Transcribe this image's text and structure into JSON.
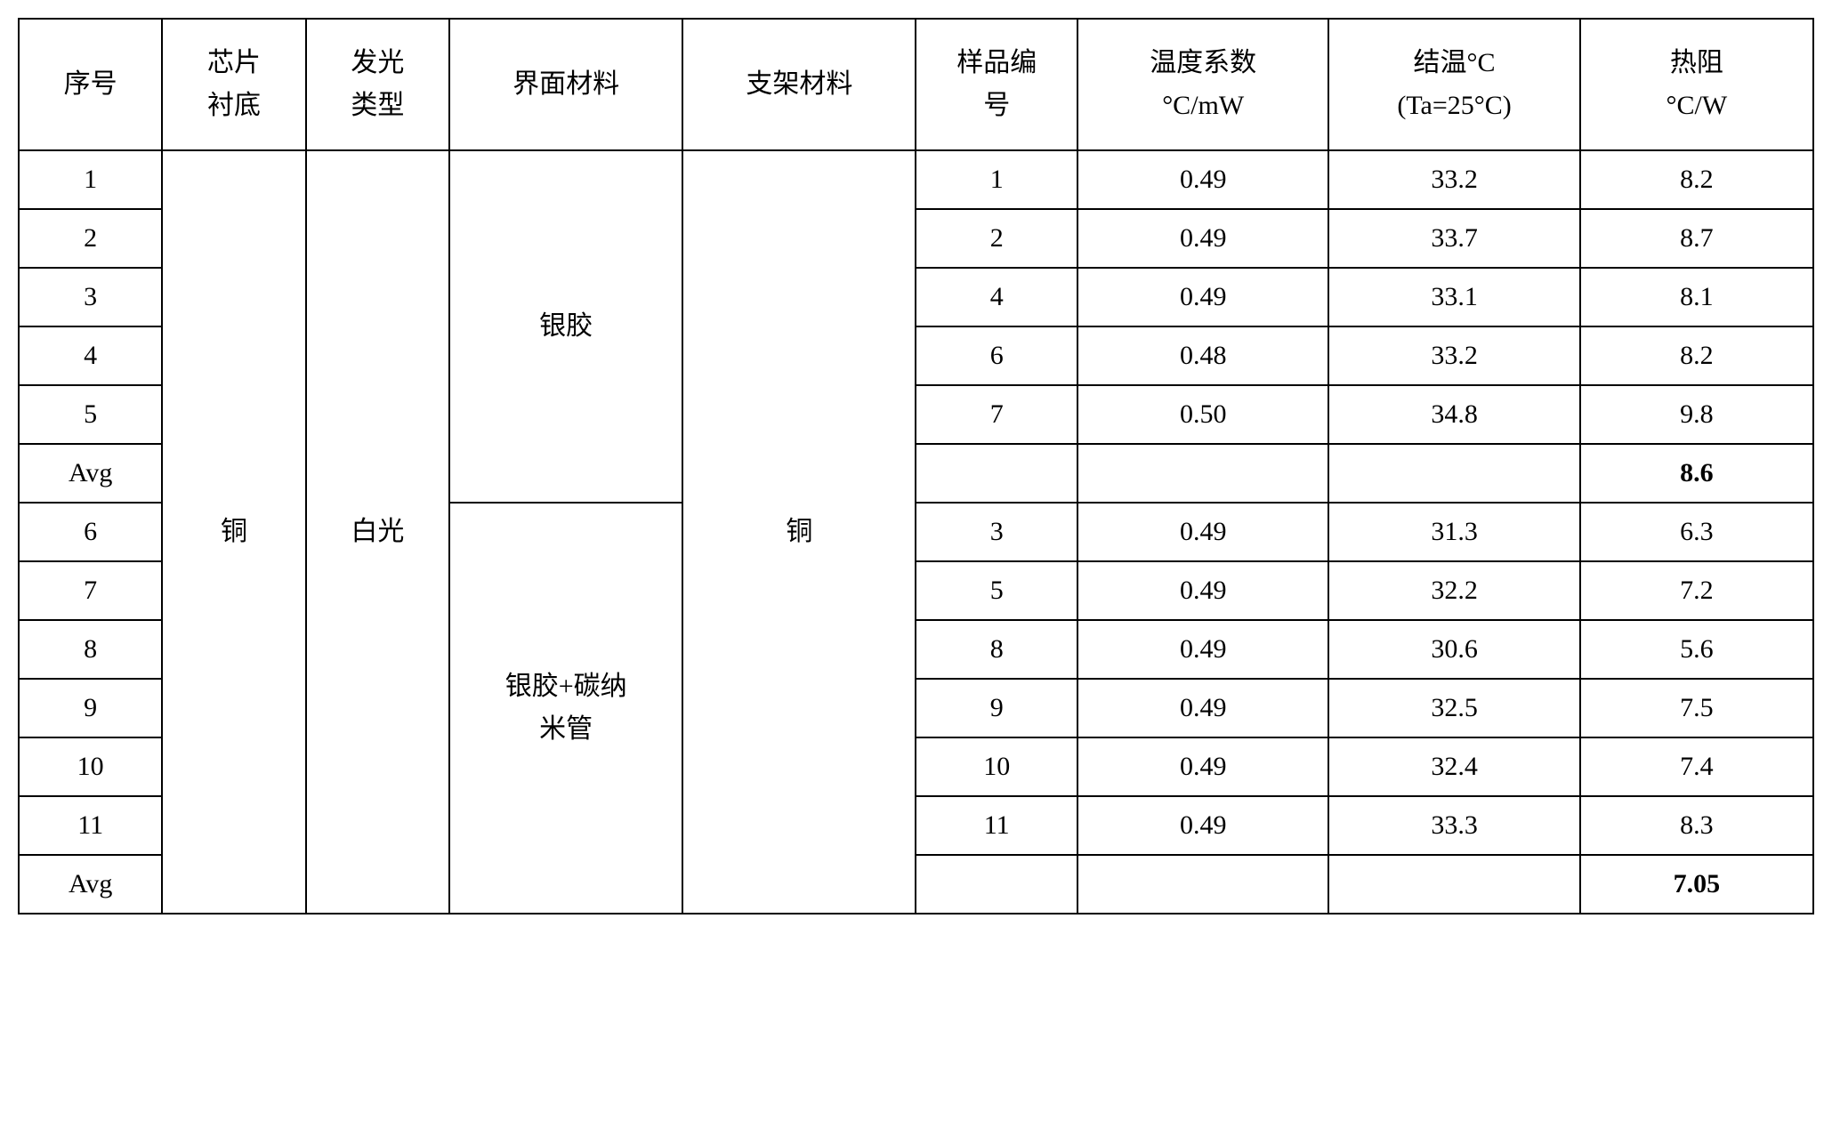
{
  "columns": {
    "c0": "序号",
    "c1": "芯片\n衬底",
    "c2": "发光\n类型",
    "c3": "界面材料",
    "c4": "支架材料",
    "c5": "样品编\n号",
    "c6": "温度系数\n°C/mW",
    "c7": "结温°C\n(Ta=25°C)",
    "c8": "热阻\n°C/W"
  },
  "merged": {
    "substrate": "铜",
    "lighttype": "白光",
    "if1": "银胶",
    "if2": "银胶+碳纳\n米管",
    "bracket": "铜"
  },
  "rows": [
    {
      "idx": "1",
      "sample": "1",
      "coef": "0.49",
      "jt": "33.2",
      "res": "8.2",
      "bold": false
    },
    {
      "idx": "2",
      "sample": "2",
      "coef": "0.49",
      "jt": "33.7",
      "res": "8.7",
      "bold": false
    },
    {
      "idx": "3",
      "sample": "4",
      "coef": "0.49",
      "jt": "33.1",
      "res": "8.1",
      "bold": false
    },
    {
      "idx": "4",
      "sample": "6",
      "coef": "0.48",
      "jt": "33.2",
      "res": "8.2",
      "bold": false
    },
    {
      "idx": "5",
      "sample": "7",
      "coef": "0.50",
      "jt": "34.8",
      "res": "9.8",
      "bold": false
    },
    {
      "idx": "Avg",
      "sample": "",
      "coef": "",
      "jt": "",
      "res": "8.6",
      "bold": true
    },
    {
      "idx": "6",
      "sample": "3",
      "coef": "0.49",
      "jt": "31.3",
      "res": "6.3",
      "bold": false
    },
    {
      "idx": "7",
      "sample": "5",
      "coef": "0.49",
      "jt": "32.2",
      "res": "7.2",
      "bold": false
    },
    {
      "idx": "8",
      "sample": "8",
      "coef": "0.49",
      "jt": "30.6",
      "res": "5.6",
      "bold": false
    },
    {
      "idx": "9",
      "sample": "9",
      "coef": "0.49",
      "jt": "32.5",
      "res": "7.5",
      "bold": false
    },
    {
      "idx": "10",
      "sample": "10",
      "coef": "0.49",
      "jt": "32.4",
      "res": "7.4",
      "bold": false
    },
    {
      "idx": "11",
      "sample": "11",
      "coef": "0.49",
      "jt": "33.3",
      "res": "8.3",
      "bold": false
    },
    {
      "idx": "Avg",
      "sample": "",
      "coef": "",
      "jt": "",
      "res": "7.05",
      "bold": true
    }
  ],
  "col_widths": [
    "8%",
    "8%",
    "8%",
    "13%",
    "13%",
    "9%",
    "14%",
    "14%",
    "13%"
  ],
  "style": {
    "border_color": "#000000",
    "background_color": "#ffffff",
    "text_color": "#000000",
    "header_fontsize": 30,
    "body_fontsize": 30,
    "font_family": "SimSun"
  }
}
